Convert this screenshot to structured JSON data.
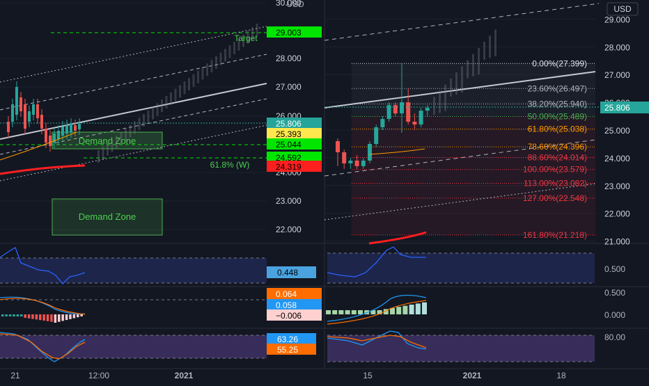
{
  "chart_data": [
    {
      "type": "candlestick",
      "panel": "left-price",
      "y_ticks": [
        "30.000",
        "28.000",
        "27.000",
        "26.000",
        "24.000",
        "23.000",
        "22.000"
      ],
      "x_ticks": [
        "21",
        "12:00",
        "2021"
      ],
      "price_tags": [
        {
          "label": "29.003",
          "value": 29.003,
          "color": "#00e600",
          "text_color": "#000000"
        },
        {
          "label": "25.806",
          "value": 25.806,
          "color": "#26a69a",
          "text_color": "#ffffff"
        },
        {
          "label": "25.393",
          "value": 25.393,
          "color": "#ffe74d",
          "text_color": "#000000"
        },
        {
          "label": "25.044",
          "value": 25.044,
          "color": "#00e600",
          "text_color": "#000000"
        },
        {
          "label": "24.592",
          "value": 24.592,
          "color": "#00e600",
          "text_color": "#000000"
        },
        {
          "label": "24.319",
          "value": 24.319,
          "color": "#ff1f1f",
          "text_color": "#000000"
        }
      ],
      "annotations": {
        "target": "Target",
        "fib_label": "61.8% (W)",
        "demand_zone": "Demand Zone",
        "demand_zone_2": "Demand Zone",
        "usd": "USD"
      }
    },
    {
      "type": "candlestick",
      "panel": "right-price",
      "y_ticks": [
        "29.000",
        "28.000",
        "27.000",
        "26.000",
        "25.000",
        "24.000",
        "23.000",
        "22.000",
        "21.000"
      ],
      "x_ticks": [
        "15",
        "2021",
        "18"
      ],
      "currency": "USD",
      "last_price": "25.806",
      "fib_levels": [
        {
          "label": "0.00%(27.399)",
          "value": 27.399,
          "color": "#e0e3eb"
        },
        {
          "label": "23.60%(26.497)",
          "value": 26.497,
          "color": "#b2b5be"
        },
        {
          "label": "38.20%(25.940)",
          "value": 25.94,
          "color": "#b2b5be"
        },
        {
          "label": "50.00%(25.489)",
          "value": 25.489,
          "color": "#4caf50"
        },
        {
          "label": "61.80%(25.038)",
          "value": 25.038,
          "color": "#ff9800"
        },
        {
          "label": "78.60%(24.396)",
          "value": 24.396,
          "color": "#ff9800"
        },
        {
          "label": "88.60%(24.014)",
          "value": 24.014,
          "color": "#f23645"
        },
        {
          "label": "100.00%(23.579)",
          "value": 23.579,
          "color": "#f23645"
        },
        {
          "label": "113.00%(23.082)",
          "value": 23.082,
          "color": "#f23645"
        },
        {
          "label": "127.00%(22.548)",
          "value": 22.548,
          "color": "#f23645"
        },
        {
          "label": "161.80%(21.218)",
          "value": 21.218,
          "color": "#f23645"
        }
      ],
      "candles": [
        {
          "o": 24.6,
          "h": 24.7,
          "l": 23.7,
          "c": 24.2
        },
        {
          "o": 24.2,
          "h": 24.3,
          "l": 23.6,
          "c": 23.8
        },
        {
          "o": 23.8,
          "h": 24.0,
          "l": 23.6,
          "c": 23.9
        },
        {
          "o": 23.9,
          "h": 24.1,
          "l": 23.6,
          "c": 23.7
        },
        {
          "o": 23.7,
          "h": 24.0,
          "l": 23.6,
          "c": 23.9
        },
        {
          "o": 23.9,
          "h": 24.6,
          "l": 23.8,
          "c": 24.5
        },
        {
          "o": 24.5,
          "h": 25.2,
          "l": 24.4,
          "c": 25.1
        },
        {
          "o": 25.1,
          "h": 25.5,
          "l": 25.0,
          "c": 25.4
        },
        {
          "o": 25.4,
          "h": 26.0,
          "l": 25.3,
          "c": 25.9
        },
        {
          "o": 25.9,
          "h": 26.0,
          "l": 25.5,
          "c": 25.6
        },
        {
          "o": 25.6,
          "h": 27.4,
          "l": 24.9,
          "c": 26.0
        },
        {
          "o": 26.0,
          "h": 26.5,
          "l": 25.2,
          "c": 25.3
        },
        {
          "o": 25.3,
          "h": 25.6,
          "l": 25.0,
          "c": 25.2
        },
        {
          "o": 25.2,
          "h": 25.8,
          "l": 25.1,
          "c": 25.7
        },
        {
          "o": 25.7,
          "h": 25.9,
          "l": 25.5,
          "c": 25.8
        }
      ]
    },
    {
      "type": "line",
      "panel": "left-oscillator",
      "label": "0.448",
      "value": 0.448
    },
    {
      "type": "line",
      "panel": "left-macd",
      "labels": [
        "0.064",
        "0.058",
        "−0.006"
      ],
      "values": [
        0.064,
        0.058,
        -0.006
      ]
    },
    {
      "type": "line",
      "panel": "left-rsi",
      "labels": [
        "63.26",
        "55.25"
      ],
      "values": [
        63.26,
        55.25
      ]
    },
    {
      "type": "line",
      "panel": "right-oscillator",
      "y_ticks": [
        "0.500",
        "0.000"
      ]
    },
    {
      "type": "bar",
      "panel": "right-macd",
      "y_ticks": [
        "0.500",
        "0.000"
      ]
    },
    {
      "type": "line",
      "panel": "right-rsi",
      "y_ticks": [
        "80.00"
      ]
    }
  ],
  "colors": {
    "background": "#131722",
    "grid": "#1e222d",
    "up": "#26a69a",
    "down": "#ef5350",
    "text": "#b2b5be"
  }
}
